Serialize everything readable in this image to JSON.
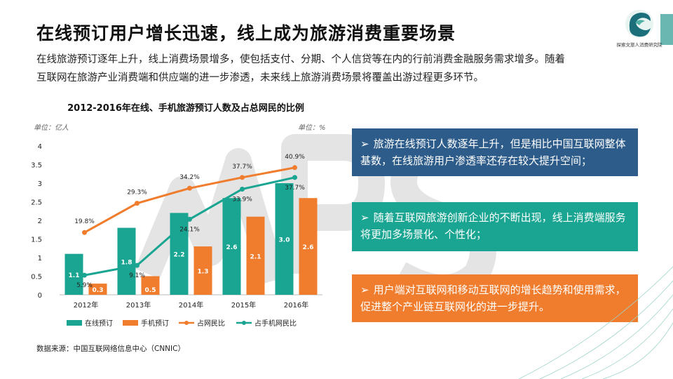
{
  "page": {
    "title": "在线预订用户增长迅速，线上成为旅游消费重要场景",
    "subtitle_lines": [
      "在线旅游预订逐年上升，线上消费场景增多，使包括支付、分期、个人信贷等在内的行前消费金融服务需求增多。随着",
      "互联网在旅游产业消费端和供应端的进一步渗透，未来线上旅游消费场景将覆盖出游过程更多环节。"
    ],
    "logo_text": "探索文旅人消费研究院",
    "source": "数据来源：中国互联网络信息中心（CNNIC）"
  },
  "callouts": [
    {
      "arrow": "➢",
      "text": "旅游在线预订人数逐年上升，但是相比中国互联网整体基数，在线旅游用户渗透率还存在较大提升空间；"
    },
    {
      "arrow": "➢",
      "text": "随着互联网旅游创新企业的不断出现，线上消费端服务将更加多场景化、个性化；"
    },
    {
      "arrow": "➢",
      "text": "用户端对互联网和移动互联网的增长趋势和使用需求，促进整个产业链互联网化的进一步提升。"
    }
  ],
  "colors": {
    "teal": "#1aa592",
    "orange": "#ef7d2d",
    "navy": "#2e5c8a",
    "text": "#222222"
  },
  "chart_data": {
    "type": "bar",
    "title": "2012-2016年在线、手机旅游预订人数及占总网民的比例",
    "ylabel_left": "单位：亿人",
    "ylabel_right": "单位：%",
    "categories": [
      "2012年",
      "2013年",
      "2014年",
      "2015年",
      "2016年"
    ],
    "ylim": [
      0,
      4
    ],
    "yticks": [
      "0",
      "0.5",
      "1",
      "1.5",
      "2",
      "2.5",
      "3",
      "3.5",
      "4"
    ],
    "bar_series": [
      {
        "name": "在线预订",
        "values": [
          1.1,
          1.8,
          2.2,
          2.6,
          3.0
        ],
        "labels": [
          "1.1",
          "1.8",
          "2.2",
          "2.6",
          "3.0"
        ],
        "color": "#1aa592"
      },
      {
        "name": "手机预订",
        "values": [
          0.3,
          0.5,
          1.3,
          2.1,
          2.6
        ],
        "labels": [
          "0.3",
          "0.5",
          "1.3",
          "2.1",
          "2.6"
        ],
        "color": "#ef7d2d"
      }
    ],
    "line_series": [
      {
        "name": "占网民比",
        "values": [
          19.8,
          29.3,
          34.2,
          37.7,
          40.9
        ],
        "labels": [
          "19.8%",
          "29.3%",
          "34.2%",
          "37.7%",
          "40.9%"
        ],
        "color": "#ef7d2d"
      },
      {
        "name": "占手机网民比",
        "values": [
          5.9,
          9.1,
          24.1,
          33.9,
          37.7
        ],
        "labels": [
          "5.9%",
          "9.1%",
          "24.1%",
          "33.9%",
          "37.7%"
        ],
        "color": "#1aa592"
      }
    ],
    "legend": [
      "在线预订",
      "手机预订",
      "占网民比",
      "占手机网民比"
    ]
  }
}
